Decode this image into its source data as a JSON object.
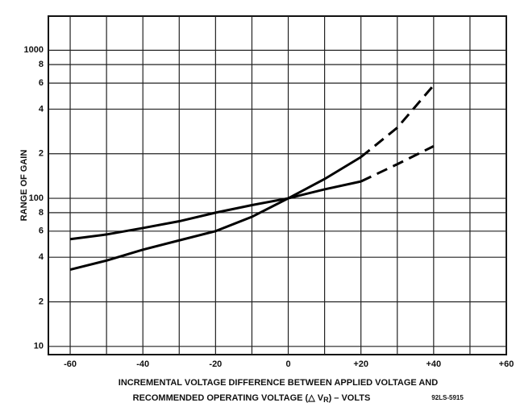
{
  "chart_data": {
    "type": "line",
    "y_label": "RANGE OF GAIN",
    "x_label": [
      "INCREMENTAL VOLTAGE DIFFERENCE BETWEEN APPLIED VOLTAGE AND",
      "RECOMMENDED OPERATING VOLTAGE (△ V",
      "R",
      ") – VOLTS"
    ],
    "code": "92LS-5915",
    "x": [
      -60,
      -50,
      -40,
      -30,
      -20,
      -10,
      0,
      10,
      20,
      30,
      40
    ],
    "series": [
      {
        "color": "#000000",
        "dashed": false,
        "values": [
          33,
          38,
          45,
          52,
          60,
          75,
          100,
          135,
          190,
          null,
          null
        ]
      },
      {
        "color": "#000000",
        "dashed": true,
        "values": [
          null,
          null,
          null,
          null,
          null,
          null,
          null,
          null,
          190,
          300,
          580
        ]
      },
      {
        "color": "#000000",
        "dashed": false,
        "values": [
          53,
          57,
          63,
          70,
          80,
          90,
          100,
          115,
          130,
          null,
          null
        ]
      },
      {
        "color": "#000000",
        "dashed": true,
        "values": [
          null,
          null,
          null,
          null,
          null,
          null,
          null,
          null,
          130,
          170,
          225
        ]
      }
    ],
    "xlim": [
      -66,
      60
    ],
    "xticks": [
      -60,
      -40,
      -20,
      0,
      {
        "value": 20,
        "label": "+20"
      },
      {
        "value": 40,
        "label": "+40"
      },
      {
        "value": 60,
        "label": "+60"
      }
    ],
    "xgrid": [
      -50,
      -30,
      -10,
      10,
      30,
      50
    ],
    "ylim": [
      8.8,
      1700
    ],
    "log_y": true,
    "yticks": [
      10,
      {
        "value": 20,
        "label": "2"
      },
      {
        "value": 40,
        "label": "4"
      },
      {
        "value": 60,
        "label": "6"
      },
      {
        "value": 80,
        "label": "8"
      },
      100,
      {
        "value": 200,
        "label": "2"
      },
      {
        "value": 400,
        "label": "4"
      },
      {
        "value": 600,
        "label": "6"
      },
      {
        "value": 800,
        "label": "8"
      },
      1000
    ],
    "grid": true
  }
}
